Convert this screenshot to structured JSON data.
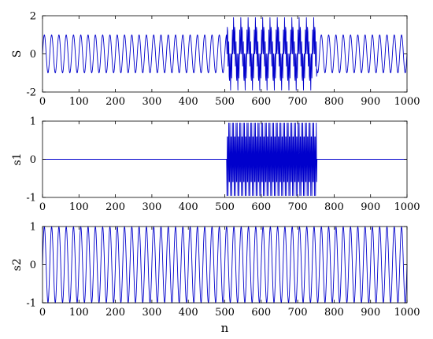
{
  "chart_data": [
    {
      "type": "line",
      "ylabel": "S",
      "xlim": [
        0,
        1000
      ],
      "ylim": [
        -2,
        2
      ],
      "x_ticks": [
        "0",
        "100",
        "200",
        "300",
        "400",
        "500",
        "600",
        "700",
        "800",
        "900",
        "1000"
      ],
      "y_ticks": [
        "2",
        "0",
        "-2"
      ],
      "line_color": "#0000cc",
      "series": [
        {
          "description": "sum of s1 and s2",
          "x": [
            0,
            1000
          ],
          "components": [
            {
              "amplitude": 1,
              "cycles_per_sample": 0.05,
              "x_range": [
                0,
                1000
              ]
            },
            {
              "amplitude": 1,
              "cycles_per_sample": 0.3,
              "x_range": [
                505,
                752
              ]
            }
          ]
        }
      ]
    },
    {
      "type": "line",
      "ylabel": "s1",
      "xlim": [
        0,
        1000
      ],
      "ylim": [
        -1,
        1
      ],
      "x_ticks": [
        "0",
        "100",
        "200",
        "300",
        "400",
        "500",
        "600",
        "700",
        "800",
        "900",
        "1000"
      ],
      "y_ticks": [
        "1",
        "0",
        "-1"
      ],
      "line_color": "#0000cc",
      "series": [
        {
          "amplitude": 1,
          "cycles_per_sample": 0.3,
          "active_x_range": [
            505,
            752
          ],
          "value_outside_range": 0
        }
      ]
    },
    {
      "type": "line",
      "ylabel": "s2",
      "xlabel": "n",
      "xlim": [
        0,
        1000
      ],
      "ylim": [
        -1,
        1
      ],
      "x_ticks": [
        "0",
        "100",
        "200",
        "300",
        "400",
        "500",
        "600",
        "700",
        "800",
        "900",
        "1000"
      ],
      "y_ticks": [
        "1",
        "0",
        "-1"
      ],
      "line_color": "#0000cc",
      "series": [
        {
          "amplitude": 1,
          "cycles_per_sample": 0.05,
          "x_range": [
            0,
            1000
          ]
        }
      ]
    }
  ]
}
